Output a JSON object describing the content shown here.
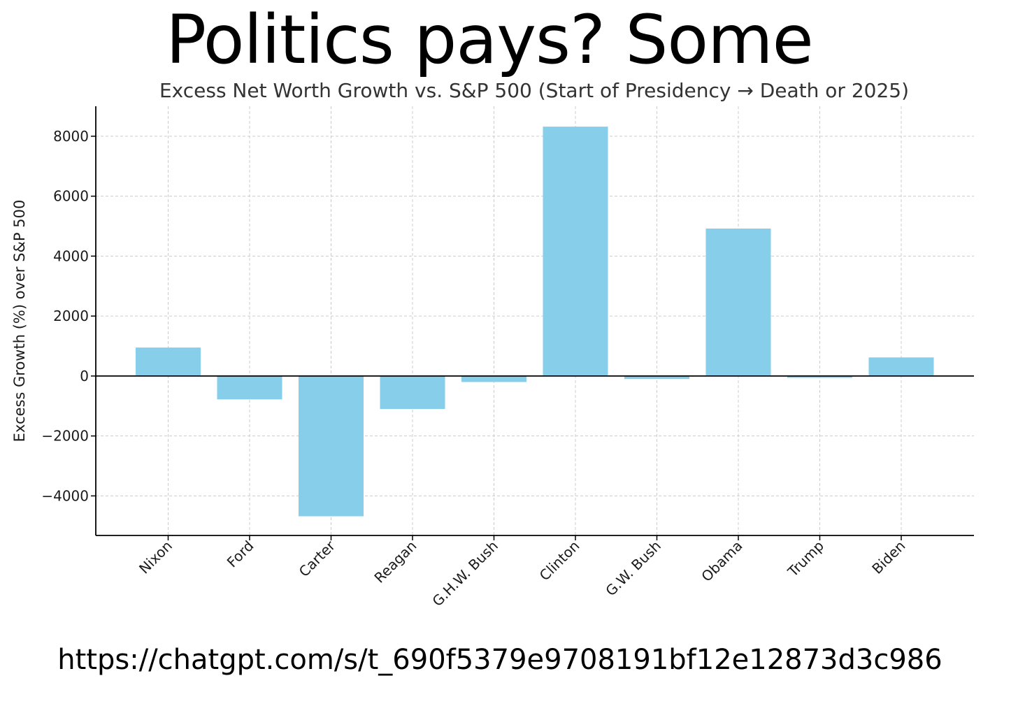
{
  "page": {
    "headline": "Politics pays? Some",
    "url": "https://chatgpt.com/s/t_690f5379e9708191bf12e12873d3c986"
  },
  "chart_data": {
    "type": "bar",
    "title": "Excess Net Worth Growth vs. S&P 500 (Start of Presidency → Death or 2025)",
    "xlabel": "",
    "ylabel": "Excess Growth (%) over S&P 500",
    "categories": [
      "Nixon",
      "Ford",
      "Carter",
      "Reagan",
      "G.H.W. Bush",
      "Clinton",
      "G.W. Bush",
      "Obama",
      "Trump",
      "Biden"
    ],
    "values": [
      950,
      -780,
      -4680,
      -1100,
      -200,
      8320,
      -100,
      4920,
      -60,
      620
    ],
    "ylim": [
      -5320,
      9000
    ],
    "yticks": [
      -4000,
      -2000,
      0,
      2000,
      4000,
      6000,
      8000
    ],
    "ytick_labels": [
      "−4000",
      "−2000",
      "0",
      "2000",
      "4000",
      "6000",
      "8000"
    ],
    "grid": true,
    "zero_line": true,
    "bar_color": "#87ceeb",
    "grid_color": "#cccccc",
    "axis_color": "#000000"
  }
}
